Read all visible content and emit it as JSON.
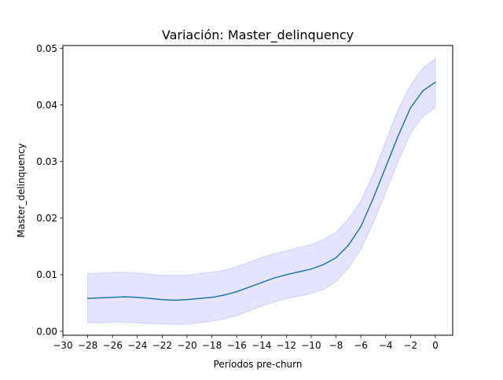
{
  "chart_data": {
    "type": "line",
    "title": "Variación: Master_delinquency",
    "xlabel": "Períodos pre-churn",
    "ylabel": "Master_delinquency",
    "xlim": [
      -30,
      1.4
    ],
    "ylim": [
      -0.0007,
      0.0505
    ],
    "xticks": [
      -30,
      -28,
      -26,
      -24,
      -22,
      -20,
      -18,
      -16,
      -14,
      -12,
      -10,
      -8,
      -6,
      -4,
      -2,
      0
    ],
    "xtick_labels": [
      "−30",
      "−28",
      "−26",
      "−24",
      "−22",
      "−20",
      "−18",
      "−16",
      "−14",
      "−12",
      "−10",
      "−8",
      "−6",
      "−4",
      "−2",
      "0"
    ],
    "yticks": [
      0.0,
      0.01,
      0.02,
      0.03,
      0.04,
      0.05
    ],
    "ytick_labels": [
      "0.00",
      "0.01",
      "0.02",
      "0.03",
      "0.04",
      "0.05"
    ],
    "grid": false,
    "series": [
      {
        "color": "#1f77b4",
        "band_color": "#0000ff",
        "band_opacity": 0.1,
        "x": [
          -28,
          -27,
          -26,
          -25,
          -24,
          -23,
          -22,
          -21,
          -20,
          -19,
          -18,
          -17,
          -16,
          -15,
          -14,
          -13,
          -12,
          -11,
          -10,
          -9,
          -8,
          -7,
          -6,
          -5,
          -4,
          -3,
          -2,
          -1,
          0
        ],
        "values": [
          0.0058,
          0.0059,
          0.006,
          0.0061,
          0.006,
          0.0058,
          0.0056,
          0.0055,
          0.0056,
          0.0058,
          0.006,
          0.0064,
          0.007,
          0.0078,
          0.0086,
          0.0094,
          0.01,
          0.0105,
          0.011,
          0.0118,
          0.013,
          0.0152,
          0.0185,
          0.0235,
          0.029,
          0.0345,
          0.0395,
          0.0425,
          0.044
        ],
        "lower": [
          0.0015,
          0.0015,
          0.0016,
          0.0016,
          0.0015,
          0.0014,
          0.0013,
          0.0012,
          0.0013,
          0.0015,
          0.0018,
          0.0022,
          0.0028,
          0.0036,
          0.0045,
          0.0052,
          0.0058,
          0.0062,
          0.0067,
          0.0074,
          0.0088,
          0.0112,
          0.0145,
          0.0192,
          0.0245,
          0.03,
          0.035,
          0.038,
          0.0395
        ],
        "upper": [
          0.0102,
          0.0103,
          0.0104,
          0.0104,
          0.0103,
          0.0101,
          0.0099,
          0.0099,
          0.0099,
          0.0102,
          0.0104,
          0.0108,
          0.0114,
          0.0122,
          0.013,
          0.0137,
          0.0142,
          0.0148,
          0.0153,
          0.0162,
          0.0175,
          0.0198,
          0.023,
          0.0278,
          0.0335,
          0.0392,
          0.0435,
          0.0465,
          0.0482
        ]
      }
    ]
  }
}
